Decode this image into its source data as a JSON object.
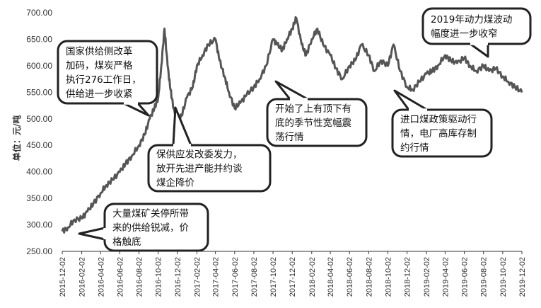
{
  "chart_data": {
    "type": "line",
    "title": "",
    "xlabel": "",
    "ylabel": "单位：元/吨",
    "ylim": [
      250,
      700
    ],
    "yticks": [
      "250.00",
      "300.00",
      "350.00",
      "400.00",
      "450.00",
      "500.00",
      "550.00",
      "600.00",
      "650.00",
      "700.00"
    ],
    "xticks": [
      "2015-12-02",
      "2016-02-02",
      "2016-04-02",
      "2016-06-02",
      "2016-08-02",
      "2016-10-02",
      "2016-12-02",
      "2017-02-02",
      "2017-04-02",
      "2017-06-02",
      "2017-08-02",
      "2017-10-02",
      "2017-12-02",
      "2018-02-02",
      "2018-04-02",
      "2018-06-02",
      "2018-08-02",
      "2018-10-02",
      "2018-12-02",
      "2019-02-02",
      "2019-04-02",
      "2019-06-02",
      "2019-08-02",
      "2019-10-02",
      "2019-12-02"
    ],
    "grid": false,
    "line_color": "#555555",
    "series": [
      {
        "x": [
          "2015-12-02",
          "2015-12-20",
          "2016-01-10",
          "2016-02-02",
          "2016-02-20",
          "2016-03-10",
          "2016-04-02",
          "2016-04-20",
          "2016-05-10",
          "2016-06-02",
          "2016-06-20",
          "2016-07-10",
          "2016-08-02",
          "2016-08-20",
          "2016-09-05",
          "2016-09-20",
          "2016-10-02",
          "2016-10-12",
          "2016-10-22",
          "2016-11-01",
          "2016-11-10",
          "2016-11-20",
          "2016-12-02",
          "2016-12-15",
          "2017-01-01",
          "2017-01-20",
          "2017-02-02",
          "2017-02-20",
          "2017-03-10",
          "2017-04-02",
          "2017-04-15",
          "2017-05-01",
          "2017-05-15",
          "2017-06-02",
          "2017-06-20",
          "2017-07-10",
          "2017-08-02",
          "2017-08-20",
          "2017-09-10",
          "2017-10-02",
          "2017-10-15",
          "2017-11-01",
          "2017-11-15",
          "2017-12-02",
          "2017-12-15",
          "2018-01-01",
          "2018-01-15",
          "2018-02-02",
          "2018-02-20",
          "2018-03-10",
          "2018-04-02",
          "2018-04-20",
          "2018-05-10",
          "2018-06-02",
          "2018-06-20",
          "2018-07-10",
          "2018-08-02",
          "2018-08-20",
          "2018-09-10",
          "2018-10-02",
          "2018-10-20",
          "2018-11-10",
          "2018-12-02",
          "2018-12-20",
          "2019-01-10",
          "2019-02-02",
          "2019-02-20",
          "2019-03-10",
          "2019-04-02",
          "2019-04-20",
          "2019-05-10",
          "2019-06-02",
          "2019-06-20",
          "2019-07-10",
          "2019-08-02",
          "2019-08-20",
          "2019-09-10",
          "2019-10-02",
          "2019-10-20",
          "2019-11-10",
          "2019-12-02"
        ],
        "values": [
          288,
          295,
          310,
          312,
          325,
          340,
          360,
          375,
          385,
          400,
          415,
          430,
          450,
          470,
          500,
          520,
          540,
          600,
          670,
          600,
          555,
          520,
          500,
          505,
          540,
          560,
          600,
          620,
          640,
          650,
          610,
          580,
          550,
          520,
          530,
          545,
          560,
          575,
          600,
          650,
          640,
          630,
          650,
          670,
          690,
          640,
          620,
          650,
          670,
          640,
          620,
          595,
          575,
          600,
          610,
          640,
          620,
          590,
          610,
          600,
          640,
          590,
          560,
          555,
          570,
          585,
          590,
          600,
          620,
          610,
          605,
          615,
          600,
          590,
          600,
          590,
          595,
          580,
          570,
          560,
          550
        ]
      }
    ],
    "annotations": [
      {
        "lines": [
          "国家供给侧改革",
          "加码，煤炭严格",
          "执行276工作日，",
          "供给进一步收紧"
        ]
      },
      {
        "lines": [
          "保供应发改委发力，",
          "放开先进产能并约谈",
          "煤企降价"
        ]
      },
      {
        "lines": [
          "开始了上有顶下有",
          "底的季节性宽幅震",
          "荡行情"
        ]
      },
      {
        "lines": [
          "2019年动力煤波动",
          "幅度进一步收窄"
        ]
      },
      {
        "lines": [
          "进口煤政策驱动行",
          "情，电厂高库存制",
          "约行情"
        ]
      },
      {
        "lines": [
          "大量煤矿关停所带",
          "来的供给锐减，价",
          "格触底"
        ]
      }
    ]
  }
}
